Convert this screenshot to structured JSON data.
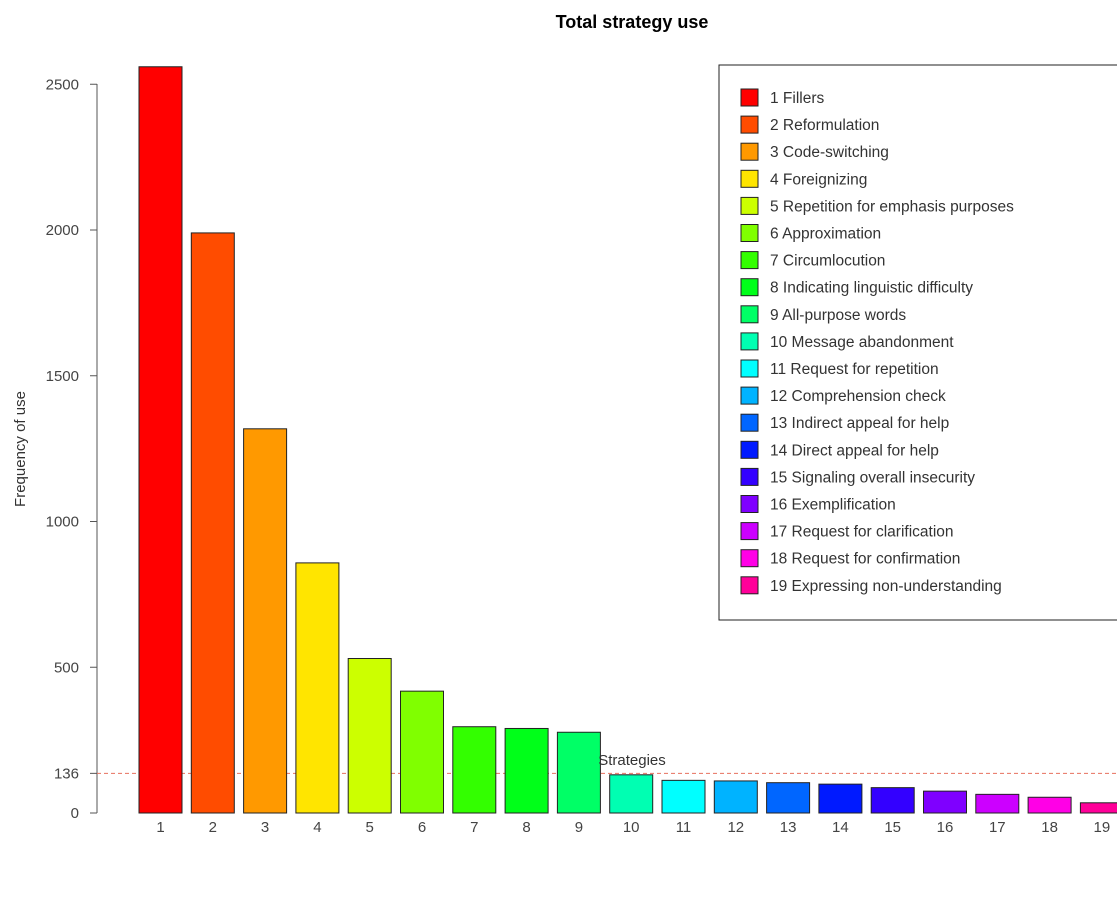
{
  "chart_data": {
    "type": "bar",
    "title": "Total strategy use",
    "xlabel": "Strategies",
    "ylabel": "Frequency of use",
    "categories": [
      "1",
      "2",
      "3",
      "4",
      "5",
      "6",
      "7",
      "8",
      "9",
      "10",
      "11",
      "12",
      "13",
      "14",
      "15",
      "16",
      "17",
      "18",
      "19"
    ],
    "values": [
      2560,
      1990,
      1318,
      858,
      530,
      418,
      296,
      290,
      277,
      131,
      112,
      110,
      104,
      99,
      87,
      75,
      64,
      54,
      35
    ],
    "colors": [
      "#ff0000",
      "#ff4c00",
      "#ff9900",
      "#ffe500",
      "#ccff00",
      "#80ff00",
      "#33ff00",
      "#00ff19",
      "#00ff66",
      "#00ffb2",
      "#00ffff",
      "#00b3ff",
      "#0066ff",
      "#001aff",
      "#3300ff",
      "#7f00ff",
      "#cc00ff",
      "#ff00e6",
      "#ff0099"
    ],
    "yticks": [
      0,
      136,
      500,
      1000,
      1500,
      2000,
      2500
    ],
    "ylim": [
      0,
      2560
    ],
    "reference_line": {
      "value": 136,
      "color": "#e8705f",
      "style": "dashed"
    },
    "legend": {
      "position": "top-right",
      "entries": [
        "1 Fillers",
        "2 Reformulation",
        "3 Code-switching",
        "4 Foreignizing",
        "5 Repetition for emphasis purposes",
        "6 Approximation",
        "7 Circumlocution",
        "8 Indicating linguistic difficulty",
        "9 All-purpose words",
        "10 Message abandonment",
        "11 Request for repetition",
        "12 Comprehension check",
        "13 Indirect appeal for help",
        "14 Direct appeal for help",
        "15 Signaling overall insecurity",
        "16 Exemplification",
        "17 Request for clarification",
        "18 Request for confirmation",
        "19 Expressing non-understanding"
      ]
    },
    "grid": false
  }
}
